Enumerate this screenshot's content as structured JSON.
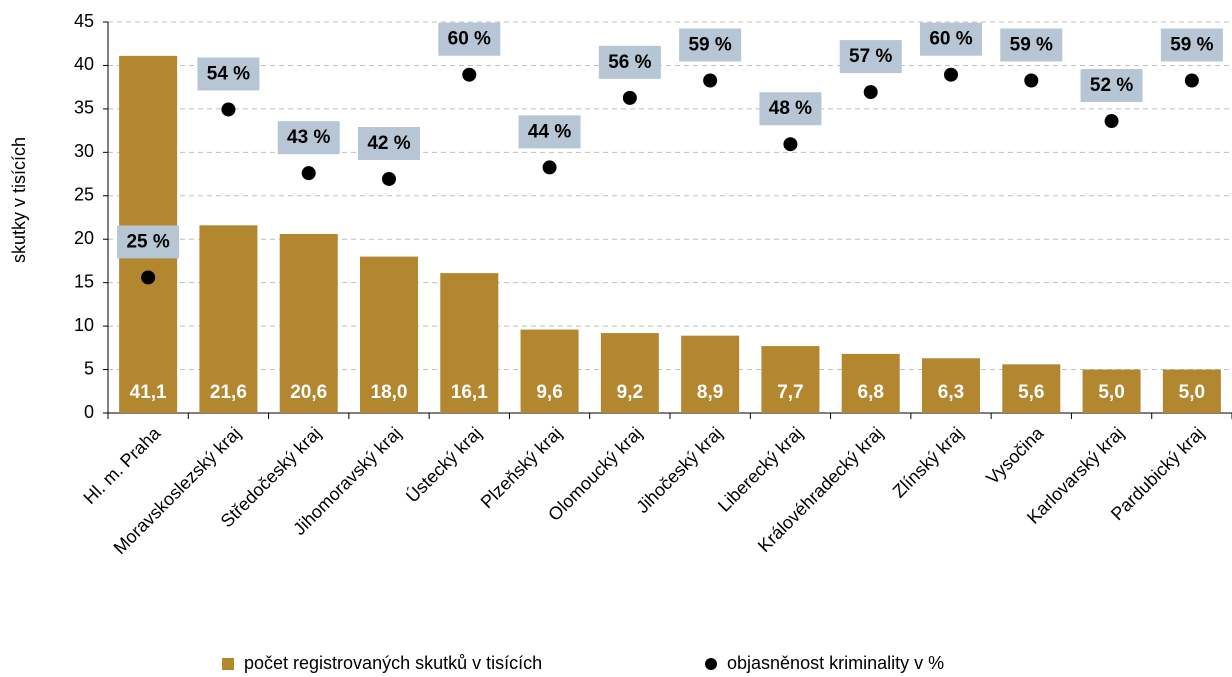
{
  "chart_data": {
    "type": "bar",
    "y_label": "skutky v tisících",
    "categories": [
      "Hl. m. Praha",
      "Moravskoslezský kraj",
      "Středočeský kraj",
      "Jihomoravský kraj",
      "Ústecký kraj",
      "Plzeňský kraj",
      "Olomoucký kraj",
      "Jihočeský kraj",
      "Liberecký kraj",
      "Královéhradecký kraj",
      "Zlínský kraj",
      "Vysočina",
      "Karlovarský kraj",
      "Pardubický kraj"
    ],
    "series": [
      {
        "name": "počet registrovaných skutků v tisících",
        "type": "bar",
        "color": "#b38630",
        "values": [
          41.1,
          21.6,
          20.6,
          18.0,
          16.1,
          9.6,
          9.2,
          8.9,
          7.7,
          6.8,
          6.3,
          5.6,
          5.0,
          5.0
        ],
        "value_labels": [
          "41,1",
          "21,6",
          "20,6",
          "18,0",
          "16,1",
          "9,6",
          "9,2",
          "8,9",
          "7,7",
          "6,8",
          "6,3",
          "5,6",
          "5,0",
          "5,0"
        ]
      },
      {
        "name": "objasněnost kriminality v %",
        "type": "scatter",
        "axis": "y2",
        "color": "#000000",
        "values": [
          25,
          54,
          43,
          42,
          60,
          44,
          56,
          59,
          48,
          57,
          60,
          59,
          52,
          59
        ],
        "value_labels": [
          "25 %",
          "54 %",
          "43 %",
          "42 %",
          "60 %",
          "44 %",
          "56 %",
          "59 %",
          "48 %",
          "57 %",
          "60 %",
          "59 %",
          "52 %",
          "59 %"
        ]
      }
    ],
    "ylim": [
      0,
      45
    ],
    "yticks": [
      0,
      5,
      10,
      15,
      20,
      25,
      30,
      35,
      40,
      45
    ],
    "y2lim": [
      1.6,
      69.1
    ],
    "grid": true,
    "legend": "bottom"
  }
}
